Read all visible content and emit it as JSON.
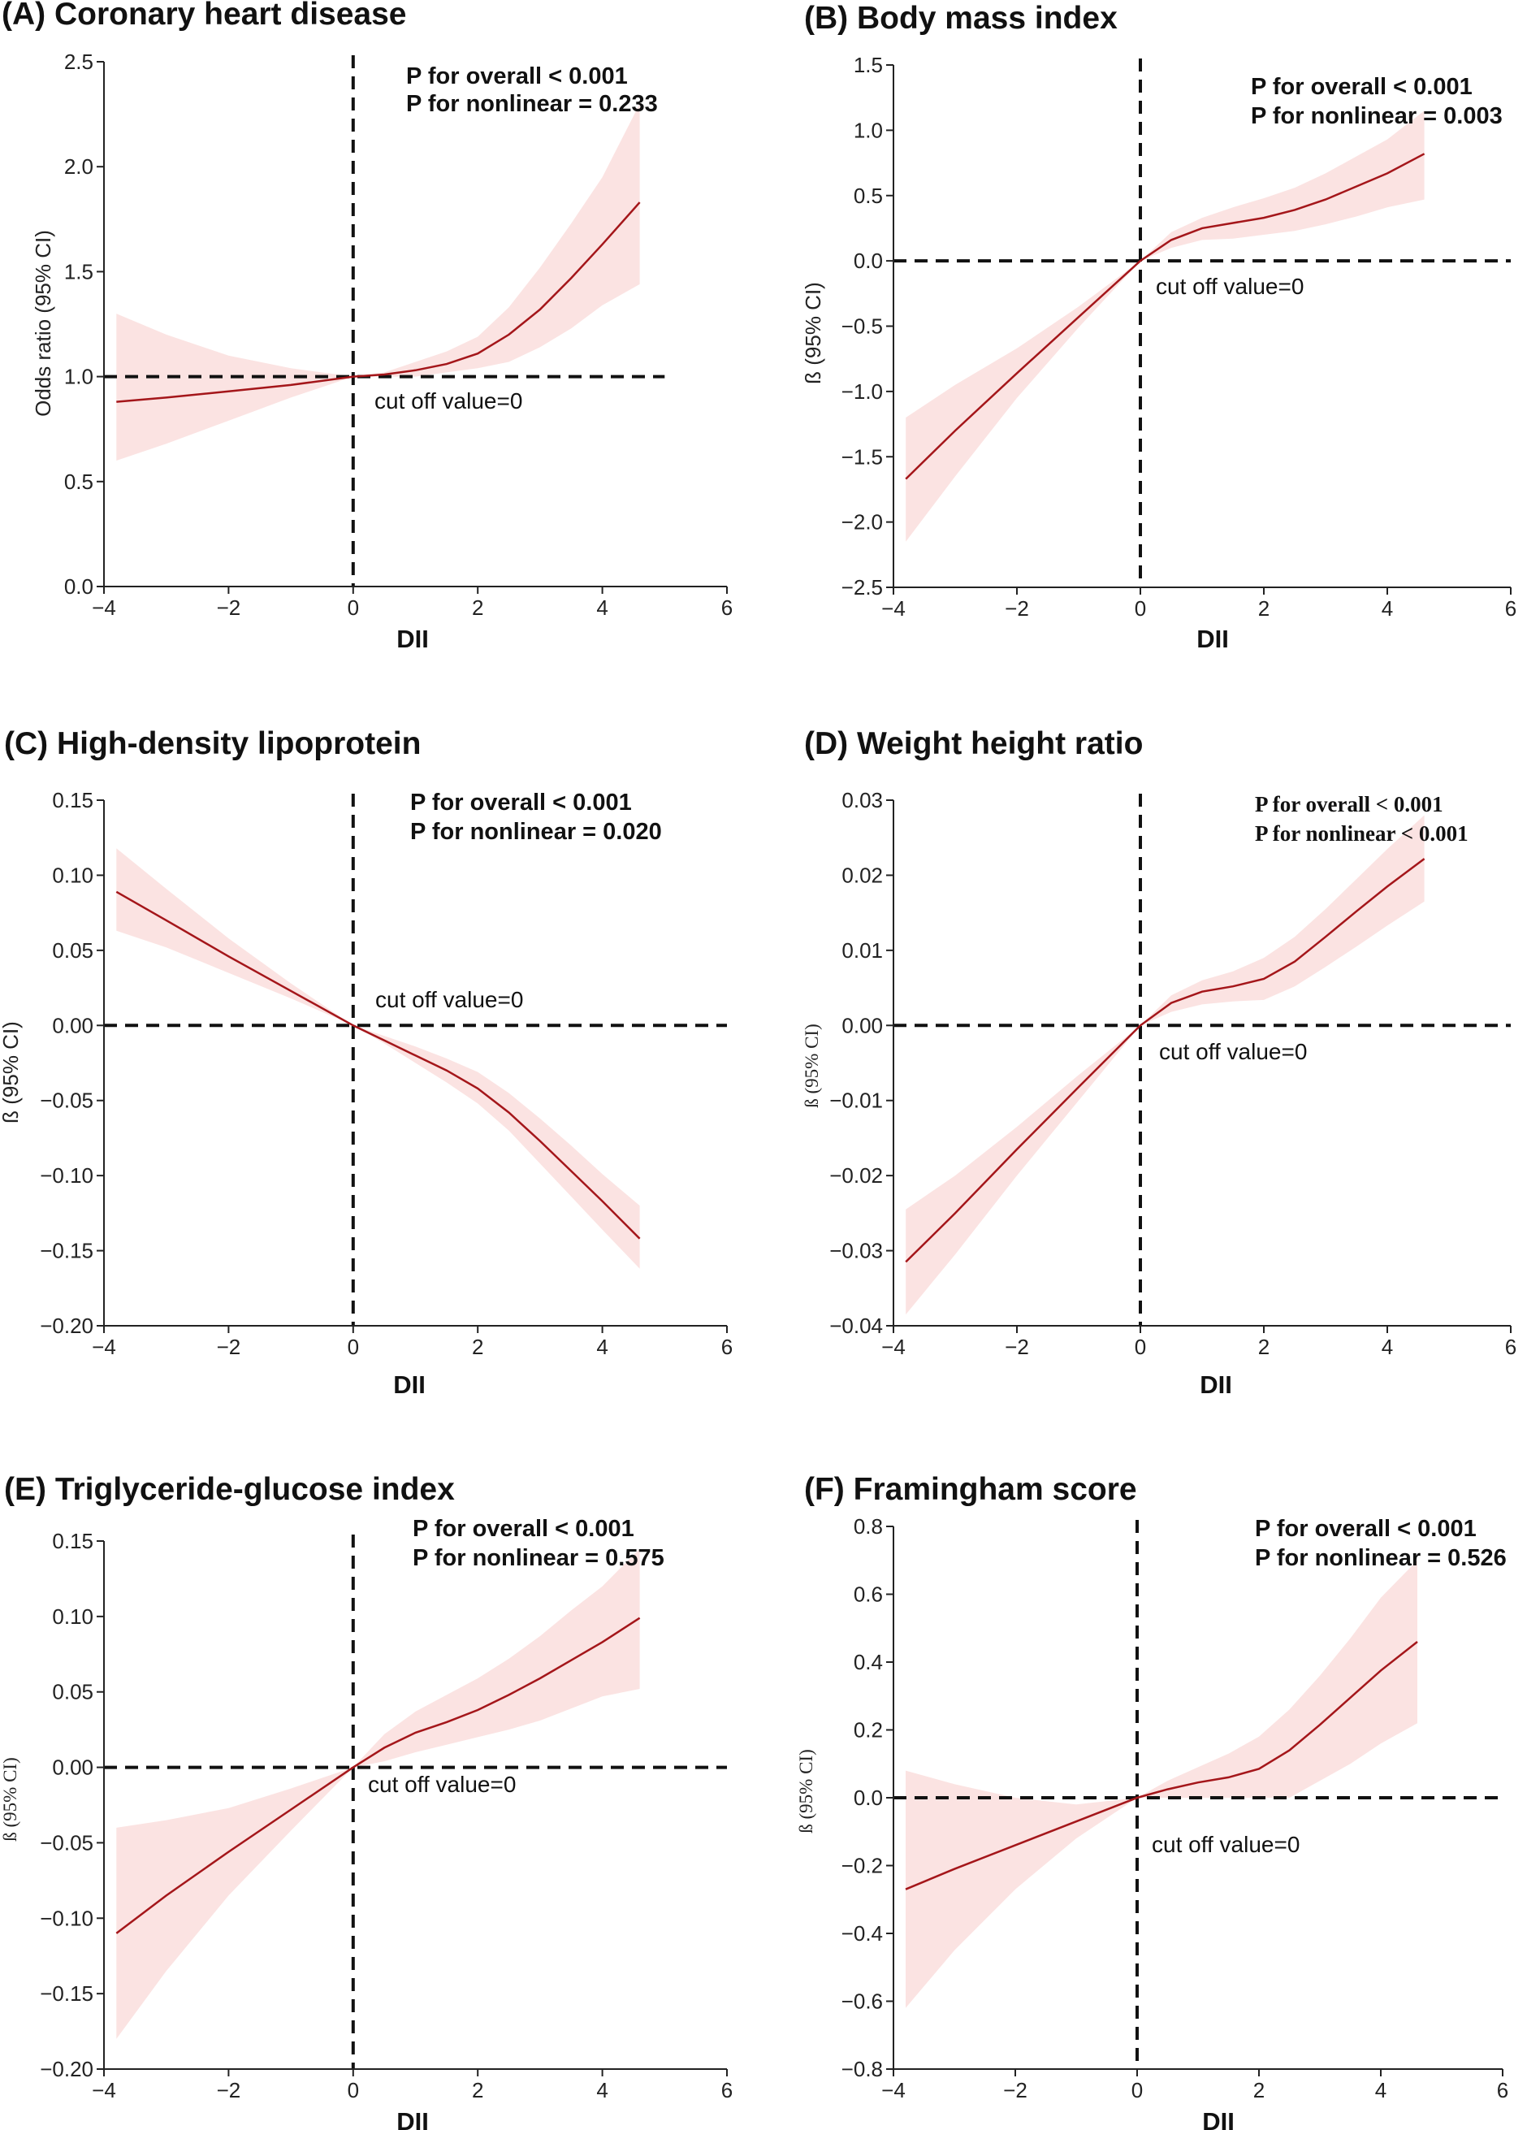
{
  "figure": {
    "line_color": "#a4161a",
    "band_color": "#fbe3e2"
  },
  "chart_data": [
    {
      "id": "A",
      "type": "line",
      "title": "(A) Coronary heart disease",
      "xlabel": "DII",
      "ylabel": "Odds ratio (95% CI)",
      "xlim": [
        -4,
        6
      ],
      "ylim": [
        0.0,
        2.5
      ],
      "xticks": [
        -4,
        -2,
        0,
        2,
        4,
        6
      ],
      "xtick_labels": [
        "−4",
        "−2",
        "0",
        "2",
        "4",
        "6"
      ],
      "yticks": [
        0.0,
        0.5,
        1.0,
        1.5,
        2.0,
        2.5
      ],
      "ytick_labels": [
        "0.0",
        "0.5",
        "1.0",
        "1.5",
        "2.0",
        "2.5"
      ],
      "ref_x": 0,
      "ref_y": 1.0,
      "ref_y_extent": [
        -4,
        5
      ],
      "p_overall": "P for overall < 0.001",
      "p_nonlinear": "P for nonlinear = 0.233",
      "cutoff_label": "cut off value=0",
      "x": [
        -3.8,
        -3,
        -2,
        -1,
        0,
        0.5,
        1,
        1.5,
        2,
        2.5,
        3,
        3.5,
        4,
        4.6
      ],
      "y": [
        0.88,
        0.9,
        0.93,
        0.96,
        1.0,
        1.01,
        1.03,
        1.06,
        1.11,
        1.2,
        1.32,
        1.47,
        1.63,
        1.83
      ],
      "lower": [
        0.6,
        0.68,
        0.79,
        0.9,
        1.0,
        1.0,
        1.0,
        1.02,
        1.04,
        1.07,
        1.14,
        1.23,
        1.34,
        1.44
      ],
      "upper": [
        1.3,
        1.2,
        1.1,
        1.04,
        1.0,
        1.02,
        1.07,
        1.12,
        1.19,
        1.33,
        1.52,
        1.73,
        1.95,
        2.3
      ]
    },
    {
      "id": "B",
      "type": "line",
      "title": "(B) Body mass index",
      "xlabel": "DII",
      "ylabel": "ß (95% CI)",
      "xlim": [
        -4,
        6
      ],
      "ylim": [
        -2.5,
        1.5
      ],
      "xticks": [
        -4,
        -2,
        0,
        2,
        4,
        6
      ],
      "xtick_labels": [
        "−4",
        "−2",
        "0",
        "2",
        "4",
        "6"
      ],
      "yticks": [
        -2.5,
        -2.0,
        -1.5,
        -1.0,
        -0.5,
        0.0,
        0.5,
        1.0,
        1.5
      ],
      "ytick_labels": [
        "−2.5",
        "−2.0",
        "−1.5",
        "−1.0",
        "−0.5",
        "0.0",
        "0.5",
        "1.0",
        "1.5"
      ],
      "ref_x": 0,
      "ref_y": 0.0,
      "ref_y_extent": [
        -4,
        6
      ],
      "p_overall": "P for overall < 0.001",
      "p_nonlinear": "P for nonlinear = 0.003",
      "cutoff_label": "cut off value=0",
      "x": [
        -3.8,
        -3,
        -2,
        -1,
        0,
        0.5,
        1,
        1.5,
        2,
        2.5,
        3,
        3.5,
        4,
        4.6
      ],
      "y": [
        -1.67,
        -1.3,
        -0.86,
        -0.43,
        0.0,
        0.16,
        0.25,
        0.29,
        0.33,
        0.39,
        0.47,
        0.57,
        0.67,
        0.82
      ],
      "lower": [
        -2.15,
        -1.65,
        -1.05,
        -0.51,
        0.0,
        0.1,
        0.16,
        0.17,
        0.2,
        0.23,
        0.28,
        0.34,
        0.41,
        0.47
      ],
      "upper": [
        -1.2,
        -0.95,
        -0.67,
        -0.35,
        0.0,
        0.22,
        0.33,
        0.41,
        0.48,
        0.56,
        0.67,
        0.8,
        0.93,
        1.15
      ]
    },
    {
      "id": "C",
      "type": "line",
      "title": "(C) High-density lipoprotein",
      "xlabel": "DII",
      "ylabel": "ß (95% CI)",
      "xlim": [
        -4,
        6
      ],
      "ylim": [
        -0.2,
        0.15
      ],
      "xticks": [
        -4,
        -2,
        0,
        2,
        4,
        6
      ],
      "xtick_labels": [
        "−4",
        "−2",
        "0",
        "2",
        "4",
        "6"
      ],
      "yticks": [
        -0.2,
        -0.15,
        -0.1,
        -0.05,
        0.0,
        0.05,
        0.1,
        0.15
      ],
      "ytick_labels": [
        "−0.20",
        "−0.15",
        "−0.10",
        "−0.05",
        "0.00",
        "0.05",
        "0.10",
        "0.15"
      ],
      "ref_x": 0,
      "ref_y": 0.0,
      "ref_y_extent": [
        -4,
        6
      ],
      "p_overall": "P for overall < 0.001",
      "p_nonlinear": "P for nonlinear = 0.020",
      "cutoff_label": "cut off value=0",
      "x": [
        -3.8,
        -3,
        -2,
        -1,
        0,
        0.5,
        1,
        1.5,
        2,
        2.5,
        3,
        3.5,
        4,
        4.6
      ],
      "y": [
        0.089,
        0.07,
        0.046,
        0.023,
        0.0,
        -0.01,
        -0.02,
        -0.03,
        -0.042,
        -0.058,
        -0.077,
        -0.097,
        -0.117,
        -0.142
      ],
      "lower": [
        0.063,
        0.052,
        0.035,
        0.018,
        0.0,
        -0.012,
        -0.025,
        -0.038,
        -0.052,
        -0.07,
        -0.092,
        -0.114,
        -0.136,
        -0.162
      ],
      "upper": [
        0.118,
        0.091,
        0.058,
        0.028,
        0.0,
        -0.007,
        -0.014,
        -0.022,
        -0.031,
        -0.045,
        -0.062,
        -0.08,
        -0.099,
        -0.12
      ]
    },
    {
      "id": "D",
      "type": "line",
      "title": "(D) Weight height ratio",
      "xlabel": "DII",
      "ylabel": "ß (95% CI)",
      "xlim": [
        -4,
        6
      ],
      "ylim": [
        -0.04,
        0.03
      ],
      "xticks": [
        -4,
        -2,
        0,
        2,
        4,
        6
      ],
      "xtick_labels": [
        "−4",
        "−2",
        "0",
        "2",
        "4",
        "6"
      ],
      "yticks": [
        -0.04,
        -0.03,
        -0.02,
        -0.01,
        0.0,
        0.01,
        0.02,
        0.03
      ],
      "ytick_labels": [
        "−0.04",
        "−0.03",
        "−0.02",
        "−0.01",
        "0.00",
        "0.01",
        "0.02",
        "0.03"
      ],
      "ref_x": 0,
      "ref_y": 0.0,
      "ref_y_extent": [
        -4,
        6
      ],
      "p_overall": "P for overall < 0.001",
      "p_nonlinear": "P for nonlinear < 0.001",
      "cutoff_label": "cut off value=0",
      "x": [
        -3.8,
        -3,
        -2,
        -1,
        0,
        0.5,
        1,
        1.5,
        2,
        2.5,
        3,
        3.5,
        4,
        4.6
      ],
      "y": [
        -0.0315,
        -0.025,
        -0.0165,
        -0.0082,
        0.0,
        0.003,
        0.0045,
        0.0052,
        0.0062,
        0.0085,
        0.0118,
        0.0152,
        0.0185,
        0.0222
      ],
      "lower": [
        -0.0385,
        -0.0305,
        -0.02,
        -0.01,
        0.0,
        0.0018,
        0.0028,
        0.0032,
        0.0034,
        0.0052,
        0.0078,
        0.0105,
        0.0133,
        0.0165
      ],
      "upper": [
        -0.0245,
        -0.02,
        -0.0135,
        -0.0066,
        0.0,
        0.004,
        0.006,
        0.0072,
        0.009,
        0.0118,
        0.0155,
        0.0195,
        0.0235,
        0.028
      ]
    },
    {
      "id": "E",
      "type": "line",
      "title": "(E) Triglyceride-glucose index",
      "xlabel": "DII",
      "ylabel": "ß (95% CI)",
      "xlim": [
        -4,
        6
      ],
      "ylim": [
        -0.2,
        0.15
      ],
      "xticks": [
        -4,
        -2,
        0,
        2,
        4,
        6
      ],
      "xtick_labels": [
        "−4",
        "−2",
        "0",
        "2",
        "4",
        "6"
      ],
      "yticks": [
        -0.2,
        -0.15,
        -0.1,
        -0.05,
        0.0,
        0.05,
        0.1,
        0.15
      ],
      "ytick_labels": [
        "−0.20",
        "−0.15",
        "−0.10",
        "−0.05",
        "0.00",
        "0.05",
        "0.10",
        "0.15"
      ],
      "ref_x": 0,
      "ref_y": 0.0,
      "ref_y_extent": [
        -4,
        6
      ],
      "p_overall": "P for overall < 0.001",
      "p_nonlinear": "P for nonlinear = 0.575",
      "cutoff_label": "cut off value=0",
      "x": [
        -3.8,
        -3,
        -2,
        -1,
        0,
        0.5,
        1,
        1.5,
        2,
        2.5,
        3,
        3.5,
        4,
        4.6
      ],
      "y": [
        -0.11,
        -0.085,
        -0.056,
        -0.028,
        0.0,
        0.013,
        0.023,
        0.03,
        0.038,
        0.048,
        0.059,
        0.071,
        0.083,
        0.099
      ],
      "lower": [
        -0.18,
        -0.135,
        -0.085,
        -0.042,
        0.0,
        0.004,
        0.01,
        0.015,
        0.02,
        0.025,
        0.031,
        0.039,
        0.047,
        0.052
      ],
      "upper": [
        -0.04,
        -0.035,
        -0.027,
        -0.014,
        0.0,
        0.022,
        0.037,
        0.048,
        0.059,
        0.072,
        0.087,
        0.104,
        0.12,
        0.145
      ]
    },
    {
      "id": "F",
      "type": "line",
      "title": "(F) Framingham score",
      "xlabel": "DII",
      "ylabel": "ß (95% CI)",
      "xlim": [
        -4,
        6
      ],
      "ylim": [
        -0.8,
        0.8
      ],
      "xticks": [
        -4,
        -2,
        0,
        2,
        4,
        6
      ],
      "xtick_labels": [
        "−4",
        "−2",
        "0",
        "2",
        "4",
        "6"
      ],
      "yticks": [
        -0.8,
        -0.6,
        -0.4,
        -0.2,
        0.0,
        0.2,
        0.4,
        0.6,
        0.8
      ],
      "ytick_labels": [
        "−0.8",
        "−0.6",
        "−0.4",
        "−0.2",
        "0.0",
        "0.2",
        "0.4",
        "0.6",
        "0.8"
      ],
      "ref_x": 0,
      "ref_y": 0.0,
      "ref_y_extent": [
        -4,
        6
      ],
      "p_overall": "P for overall < 0.001",
      "p_nonlinear": "P for nonlinear = 0.526",
      "cutoff_label": "cut off value=0",
      "x": [
        -3.8,
        -3,
        -2,
        -1,
        0,
        0.5,
        1,
        1.5,
        2,
        2.5,
        3,
        3.5,
        4,
        4.6
      ],
      "y": [
        -0.27,
        -0.21,
        -0.14,
        -0.07,
        0.0,
        0.025,
        0.045,
        0.06,
        0.085,
        0.14,
        0.215,
        0.295,
        0.375,
        0.46
      ],
      "lower": [
        -0.62,
        -0.45,
        -0.27,
        -0.12,
        0.0,
        0.0,
        0.0,
        0.0,
        0.0,
        0.0,
        0.05,
        0.1,
        0.16,
        0.22
      ],
      "upper": [
        0.08,
        0.04,
        0.0,
        -0.02,
        0.0,
        0.05,
        0.09,
        0.13,
        0.18,
        0.26,
        0.36,
        0.47,
        0.59,
        0.7
      ]
    }
  ]
}
